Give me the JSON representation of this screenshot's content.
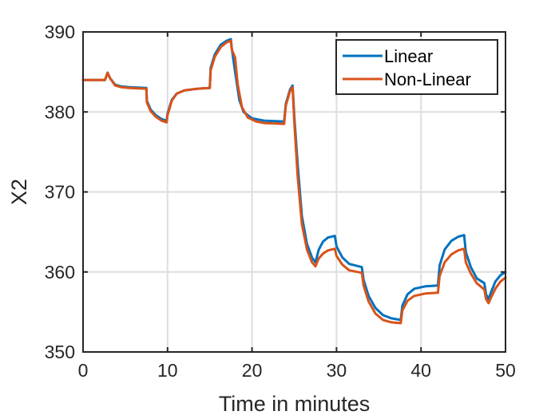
{
  "chart_data": {
    "type": "line",
    "title": "",
    "xlabel": "Time in minutes",
    "ylabel": "X2",
    "xlim": [
      0,
      50
    ],
    "ylim": [
      350,
      390
    ],
    "xticks": [
      0,
      10,
      20,
      30,
      40,
      50
    ],
    "yticks": [
      350,
      360,
      370,
      380,
      390
    ],
    "grid": true,
    "legend_position": "top-right",
    "series": [
      {
        "name": "Linear",
        "color": "#0072BD",
        "points": [
          [
            0,
            384
          ],
          [
            2.6,
            384
          ],
          [
            2.9,
            384.9
          ],
          [
            3.2,
            384.2
          ],
          [
            3.8,
            383.4
          ],
          [
            4.5,
            383.2
          ],
          [
            5.5,
            383.1
          ],
          [
            7.5,
            383.0
          ],
          [
            7.55,
            381.4
          ],
          [
            8.0,
            380.3
          ],
          [
            8.6,
            379.6
          ],
          [
            9.3,
            379.1
          ],
          [
            9.9,
            378.9
          ],
          [
            10.0,
            379.8
          ],
          [
            10.5,
            381.5
          ],
          [
            11.1,
            382.3
          ],
          [
            12.0,
            382.7
          ],
          [
            13.5,
            382.9
          ],
          [
            15.0,
            383.0
          ],
          [
            15.1,
            385.5
          ],
          [
            15.6,
            387.2
          ],
          [
            16.3,
            388.4
          ],
          [
            17.0,
            388.9
          ],
          [
            17.5,
            389.1
          ],
          [
            17.6,
            388.0
          ],
          [
            18.0,
            385.0
          ],
          [
            18.5,
            381.5
          ],
          [
            19.0,
            380.0
          ],
          [
            20.0,
            379.2
          ],
          [
            21.5,
            378.9
          ],
          [
            23.8,
            378.8
          ],
          [
            24.0,
            381.0
          ],
          [
            24.5,
            382.8
          ],
          [
            24.8,
            383.3
          ],
          [
            25.0,
            379.5
          ],
          [
            25.4,
            373.5
          ],
          [
            25.9,
            367.0
          ],
          [
            26.5,
            363.5
          ],
          [
            27.1,
            361.8
          ],
          [
            27.5,
            361.2
          ],
          [
            27.9,
            362.8
          ],
          [
            28.4,
            363.8
          ],
          [
            29.0,
            364.3
          ],
          [
            29.8,
            364.5
          ],
          [
            30.0,
            363.2
          ],
          [
            30.7,
            361.8
          ],
          [
            31.5,
            361.0
          ],
          [
            33.0,
            360.6
          ],
          [
            33.2,
            359.0
          ],
          [
            33.8,
            357.0
          ],
          [
            34.6,
            355.5
          ],
          [
            35.5,
            354.6
          ],
          [
            36.5,
            354.2
          ],
          [
            37.6,
            354.0
          ],
          [
            37.8,
            355.8
          ],
          [
            38.4,
            357.2
          ],
          [
            39.2,
            357.9
          ],
          [
            40.5,
            358.2
          ],
          [
            42.0,
            358.3
          ],
          [
            42.2,
            360.8
          ],
          [
            42.8,
            362.8
          ],
          [
            43.6,
            363.9
          ],
          [
            44.4,
            364.4
          ],
          [
            45.1,
            364.6
          ],
          [
            45.3,
            362.5
          ],
          [
            45.9,
            360.6
          ],
          [
            46.6,
            359.2
          ],
          [
            47.5,
            358.6
          ],
          [
            47.7,
            357.2
          ],
          [
            48.0,
            356.6
          ],
          [
            48.3,
            357.5
          ],
          [
            48.8,
            358.8
          ],
          [
            49.4,
            359.6
          ],
          [
            50,
            360.0
          ]
        ]
      },
      {
        "name": "Non-Linear",
        "color": "#D95319",
        "points": [
          [
            0,
            384
          ],
          [
            2.6,
            384
          ],
          [
            2.9,
            384.9
          ],
          [
            3.2,
            384.2
          ],
          [
            3.8,
            383.3
          ],
          [
            4.5,
            383.1
          ],
          [
            5.5,
            383.0
          ],
          [
            7.5,
            382.9
          ],
          [
            7.55,
            381.2
          ],
          [
            8.0,
            380.1
          ],
          [
            8.6,
            379.4
          ],
          [
            9.3,
            378.9
          ],
          [
            9.9,
            378.7
          ],
          [
            10.0,
            379.6
          ],
          [
            10.5,
            381.4
          ],
          [
            11.1,
            382.3
          ],
          [
            12.0,
            382.7
          ],
          [
            13.5,
            382.9
          ],
          [
            15.0,
            383.0
          ],
          [
            15.1,
            385.2
          ],
          [
            15.6,
            386.9
          ],
          [
            16.3,
            388.1
          ],
          [
            17.0,
            388.7
          ],
          [
            17.5,
            388.9
          ],
          [
            17.6,
            387.8
          ],
          [
            18.0,
            386.8
          ],
          [
            18.3,
            383.5
          ],
          [
            18.8,
            380.6
          ],
          [
            19.5,
            379.3
          ],
          [
            20.5,
            378.8
          ],
          [
            21.5,
            378.6
          ],
          [
            23.8,
            378.5
          ],
          [
            24.0,
            380.8
          ],
          [
            24.5,
            382.6
          ],
          [
            24.8,
            383.1
          ],
          [
            25.0,
            378.8
          ],
          [
            25.4,
            372.0
          ],
          [
            25.9,
            366.0
          ],
          [
            26.5,
            362.8
          ],
          [
            27.1,
            361.2
          ],
          [
            27.5,
            360.7
          ],
          [
            27.9,
            361.7
          ],
          [
            28.4,
            362.3
          ],
          [
            29.0,
            362.7
          ],
          [
            29.8,
            362.9
          ],
          [
            30.0,
            362.0
          ],
          [
            30.7,
            360.9
          ],
          [
            31.5,
            360.2
          ],
          [
            33.0,
            359.9
          ],
          [
            33.2,
            358.3
          ],
          [
            33.8,
            356.3
          ],
          [
            34.6,
            354.8
          ],
          [
            35.5,
            354.0
          ],
          [
            36.5,
            353.7
          ],
          [
            37.6,
            353.6
          ],
          [
            37.8,
            355.2
          ],
          [
            38.4,
            356.4
          ],
          [
            39.2,
            357.0
          ],
          [
            40.5,
            357.3
          ],
          [
            42.0,
            357.4
          ],
          [
            42.2,
            359.5
          ],
          [
            42.8,
            361.2
          ],
          [
            43.6,
            362.2
          ],
          [
            44.4,
            362.7
          ],
          [
            45.1,
            362.9
          ],
          [
            45.3,
            361.2
          ],
          [
            45.9,
            359.8
          ],
          [
            46.6,
            358.6
          ],
          [
            47.5,
            357.8
          ],
          [
            47.7,
            356.6
          ],
          [
            48.0,
            356.1
          ],
          [
            48.3,
            356.8
          ],
          [
            48.8,
            357.9
          ],
          [
            49.4,
            358.8
          ],
          [
            50,
            359.3
          ]
        ]
      }
    ]
  }
}
